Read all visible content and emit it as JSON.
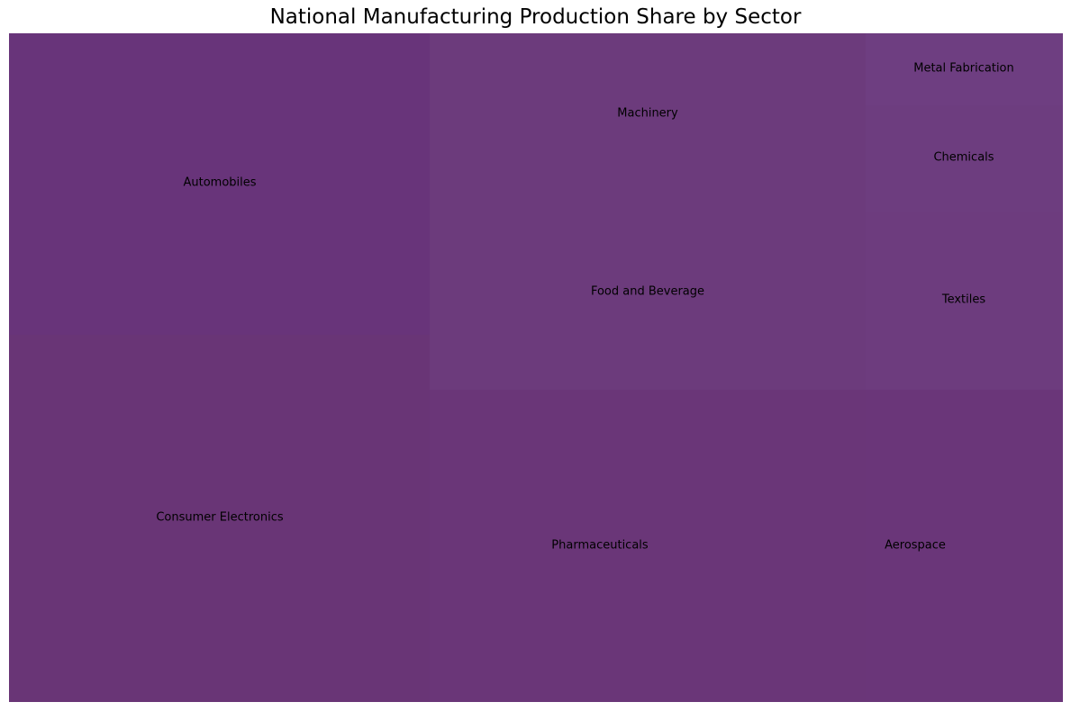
{
  "chart_data": {
    "type": "treemap",
    "title": "National Manufacturing Production Share by Sector",
    "tiles": [
      {
        "name": "Automobiles",
        "label": "Automobiles",
        "color": "#68347a"
      },
      {
        "name": "Consumer Electronics",
        "label": "Consumer Electronics",
        "color": "#693576"
      },
      {
        "name": "Machinery",
        "label": "Machinery",
        "color": "#6c3b7c"
      },
      {
        "name": "Food and Beverage",
        "label": "Food and Beverage",
        "color": "#6c3b7c"
      },
      {
        "name": "Pharmaceuticals",
        "label": "Pharmaceuticals",
        "color": "#6a3678"
      },
      {
        "name": "Metal Fabrication",
        "label": "Metal Fabrication",
        "color": "#6e3e81"
      },
      {
        "name": "Chemicals",
        "label": "Chemicals",
        "color": "#6d3d7f"
      },
      {
        "name": "Textiles",
        "label": "Textiles",
        "color": "#6d3c7e"
      },
      {
        "name": "Aerospace",
        "label": "Aerospace",
        "color": "#6a3679"
      }
    ]
  }
}
